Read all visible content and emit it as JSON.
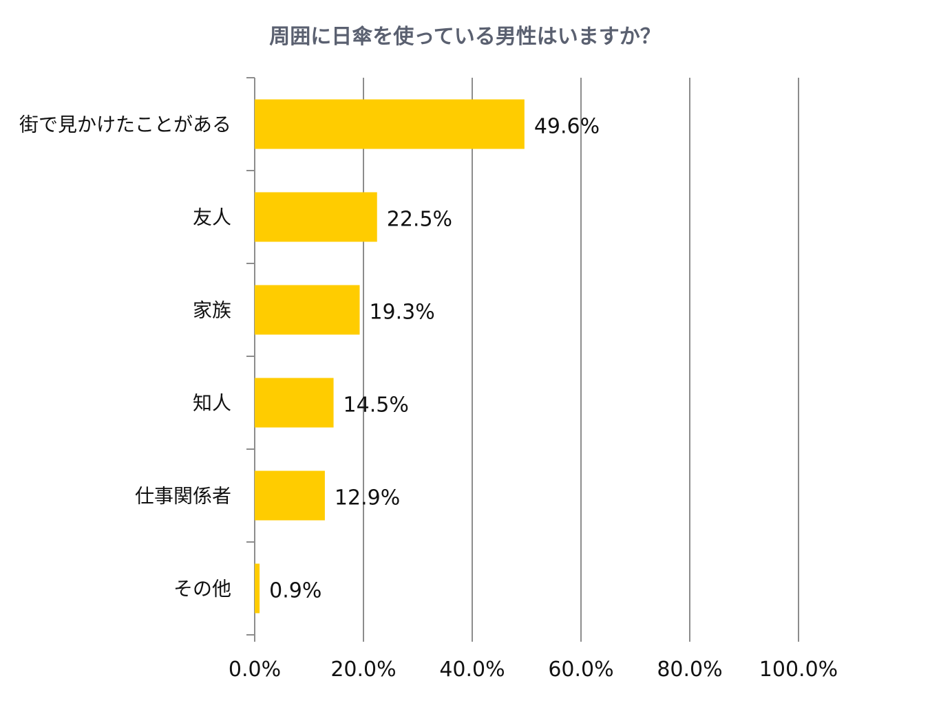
{
  "chart_data": {
    "type": "bar",
    "orientation": "horizontal",
    "title": "周囲に日傘を使っている男性はいますか？",
    "categories": [
      "街で見かけたことがある",
      "友人",
      "家族",
      "知人",
      "仕事関係者",
      "その他"
    ],
    "values": [
      49.6,
      22.5,
      19.3,
      14.5,
      12.9,
      0.9
    ],
    "value_labels": [
      "49.6%",
      "22.5%",
      "19.3%",
      "14.5%",
      "12.9%",
      "0.9%"
    ],
    "xlim": [
      0,
      100
    ],
    "x_ticks": [
      0,
      20,
      40,
      60,
      80,
      100
    ],
    "x_tick_labels": [
      "0.0%",
      "20.0%",
      "40.0%",
      "60.0%",
      "80.0%",
      "100.0%"
    ],
    "grid": "vertical",
    "bar_color": "#FFCC00",
    "grid_color": "#8c8c8c"
  }
}
